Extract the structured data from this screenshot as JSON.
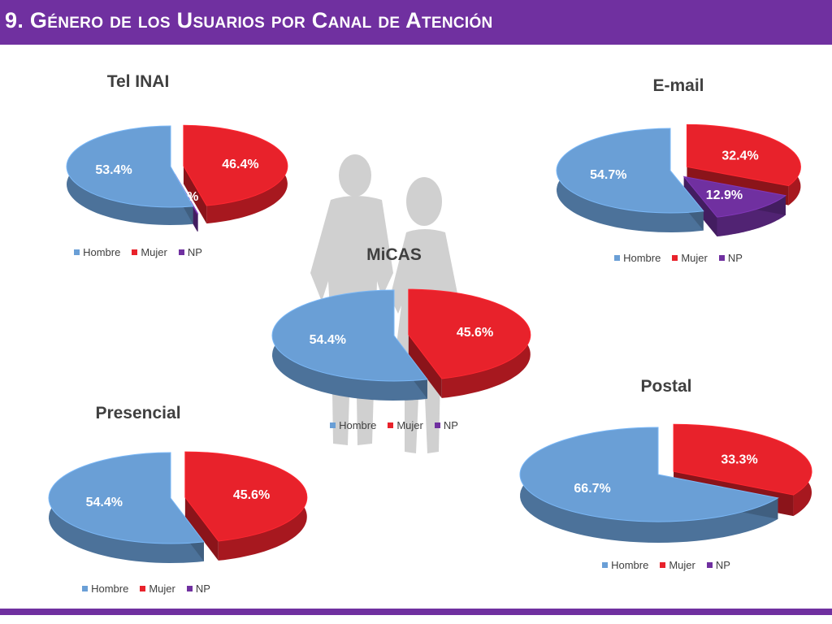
{
  "header": {
    "title": "9. Género de los Usuarios por Canal de Atención"
  },
  "colors": {
    "header_bg": "#7030a0",
    "Hombre": "#6a9fd6",
    "Mujer": "#e8222b",
    "NP": "#7030a0"
  },
  "legend": [
    "Hombre",
    "Mujer",
    "NP"
  ],
  "chart_data": [
    {
      "type": "pie",
      "title": "Tel INAI",
      "categories": [
        "Hombre",
        "Mujer",
        "NP"
      ],
      "values": [
        53.4,
        46.4,
        0.1
      ],
      "labels": [
        "53.4%",
        "46.4%",
        ".1%"
      ],
      "legend": "bottom"
    },
    {
      "type": "pie",
      "title": "E-mail",
      "categories": [
        "Hombre",
        "Mujer",
        "NP"
      ],
      "values": [
        54.7,
        32.4,
        12.9
      ],
      "labels": [
        "54.7%",
        "32.4%",
        "12.9%"
      ],
      "legend": "bottom"
    },
    {
      "type": "pie",
      "title": "MiCAS",
      "categories": [
        "Hombre",
        "Mujer",
        "NP"
      ],
      "values": [
        54.4,
        45.6,
        0
      ],
      "labels": [
        "54.4%",
        "45.6%",
        ""
      ],
      "legend": "bottom"
    },
    {
      "type": "pie",
      "title": "Presencial",
      "categories": [
        "Hombre",
        "Mujer",
        "NP"
      ],
      "values": [
        54.4,
        45.6,
        0
      ],
      "labels": [
        "54.4%",
        "45.6%",
        ""
      ],
      "legend": "bottom"
    },
    {
      "type": "pie",
      "title": "Postal",
      "categories": [
        "Hombre",
        "Mujer",
        "NP"
      ],
      "values": [
        66.7,
        33.3,
        0
      ],
      "labels": [
        "66.7%",
        "33.3%",
        ""
      ],
      "legend": "bottom"
    }
  ]
}
